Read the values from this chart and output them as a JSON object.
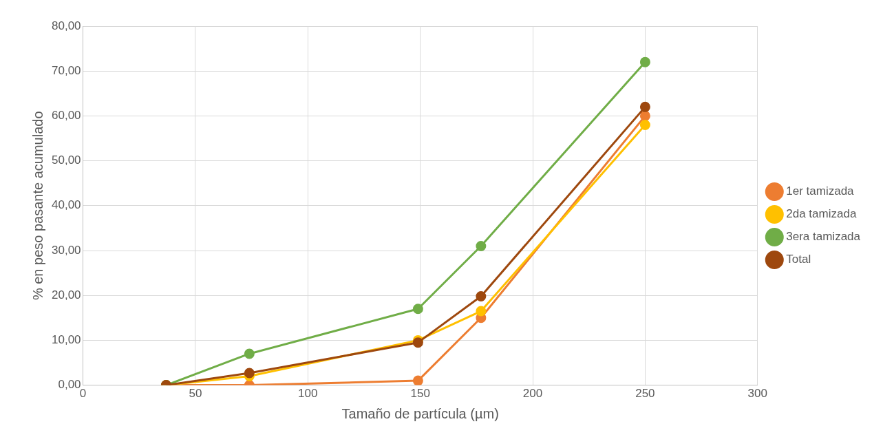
{
  "chart_data": {
    "type": "line",
    "xlabel": "Tamaño de partícula (µm)",
    "ylabel": "% en peso pasante acumulado",
    "x": [
      37,
      74,
      149,
      177,
      250
    ],
    "series": [
      {
        "name": "1er tamizada",
        "color": "#ed7d31",
        "values": [
          0,
          0,
          1,
          15,
          60
        ]
      },
      {
        "name": "2da tamizada",
        "color": "#ffc000",
        "values": [
          0,
          2,
          10,
          16.5,
          58
        ]
      },
      {
        "name": "3era tamizada",
        "color": "#70ad47",
        "values": [
          0,
          7,
          17,
          31,
          72
        ]
      },
      {
        "name": "Total",
        "color": "#9e480e",
        "values": [
          0,
          2.7,
          9.5,
          19.8,
          62
        ]
      }
    ],
    "xlim": [
      0,
      300
    ],
    "xticks": [
      0,
      50,
      100,
      150,
      200,
      250,
      300
    ],
    "ylim": [
      0,
      80
    ],
    "yticks": [
      {
        "value": 0,
        "label": "0,00"
      },
      {
        "value": 10,
        "label": "10,00"
      },
      {
        "value": 20,
        "label": "20,00"
      },
      {
        "value": 30,
        "label": "30,00"
      },
      {
        "value": 40,
        "label": "40,00"
      },
      {
        "value": 50,
        "label": "50,00"
      },
      {
        "value": 60,
        "label": "60,00"
      },
      {
        "value": 70,
        "label": "70,00"
      },
      {
        "value": 80,
        "label": "80,00"
      }
    ],
    "grid": true,
    "legend": "right",
    "marker": "circle",
    "line_style": "solid"
  }
}
